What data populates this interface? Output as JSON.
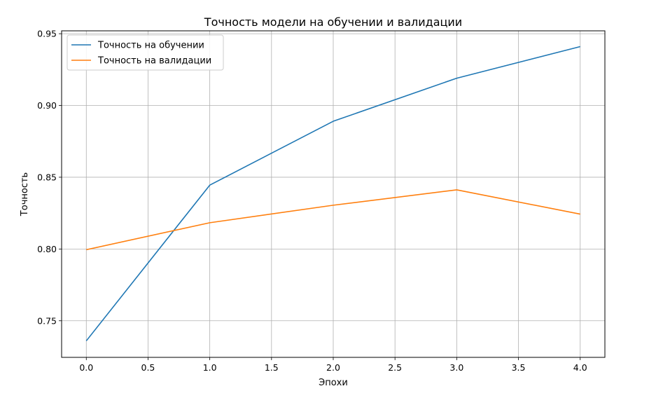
{
  "chart_data": {
    "type": "line",
    "title": "Точность модели на обучении и валидации",
    "xlabel": "Эпохи",
    "ylabel": "Точность",
    "xlim": [
      -0.2,
      4.2
    ],
    "ylim": [
      0.7245,
      0.952
    ],
    "x": [
      0,
      1,
      2,
      3,
      4
    ],
    "xticks": [
      "0.0",
      "0.5",
      "1.0",
      "1.5",
      "2.0",
      "2.5",
      "3.0",
      "3.5",
      "4.0"
    ],
    "xtick_values": [
      0,
      0.5,
      1,
      1.5,
      2,
      2.5,
      3,
      3.5,
      4
    ],
    "yticks": [
      "0.75",
      "0.80",
      "0.85",
      "0.90",
      "0.95"
    ],
    "ytick_values": [
      0.75,
      0.8,
      0.85,
      0.9,
      0.95
    ],
    "grid": true,
    "legend_position": "top-left",
    "series": [
      {
        "name": "Точность на обучении",
        "color": "#1f77b4",
        "values": [
          0.736,
          0.8445,
          0.889,
          0.919,
          0.941
        ]
      },
      {
        "name": "Точность на валидации",
        "color": "#ff7f0e",
        "values": [
          0.7995,
          0.8183,
          0.8305,
          0.8412,
          0.8243
        ]
      }
    ]
  }
}
